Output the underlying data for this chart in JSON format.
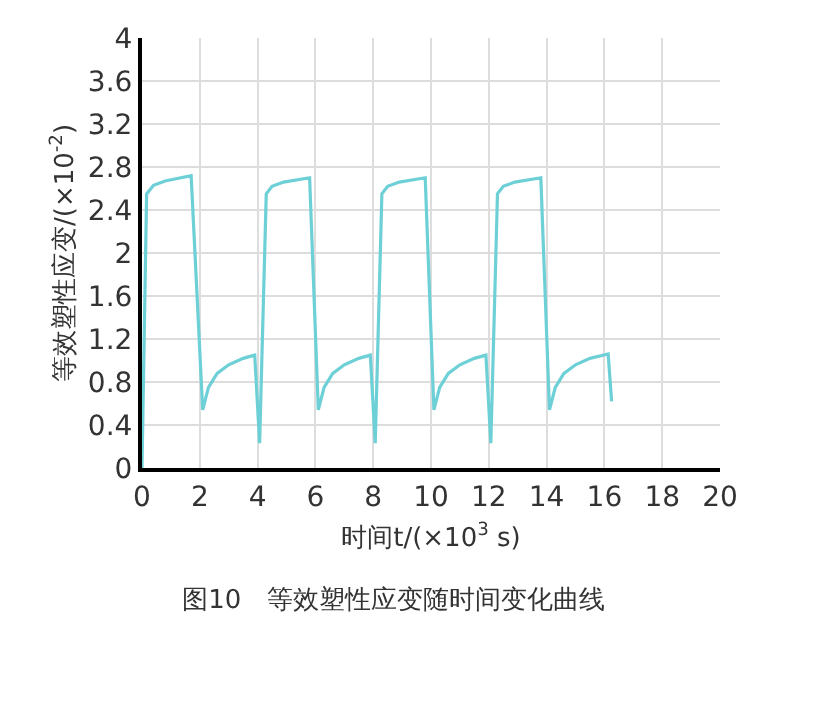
{
  "chart_data": {
    "type": "line",
    "title": "图10　等效塑性应变随时间变化曲线",
    "xlabel": "时间t/(×10$^{3}$ s)",
    "ylabel": "等效塑性应变/(×10$^{-2}$)",
    "x": [
      0,
      0.16,
      0.4,
      0.8,
      1.7,
      2.1,
      2.3,
      2.6,
      3.0,
      3.5,
      3.9,
      4.07,
      4.3,
      4.5,
      4.9,
      5.8,
      6.1,
      6.3,
      6.6,
      7.0,
      7.5,
      7.9,
      8.07,
      8.3,
      8.5,
      8.9,
      9.8,
      10.1,
      10.3,
      10.6,
      11.0,
      11.5,
      11.9,
      12.07,
      12.3,
      12.5,
      12.9,
      13.8,
      14.1,
      14.3,
      14.6,
      15.0,
      15.5,
      16.13,
      16.25
    ],
    "series": [
      {
        "color": "#6dd0d6",
        "values": [
          0,
          2.55,
          2.63,
          2.67,
          2.72,
          0.54,
          0.75,
          0.88,
          0.96,
          1.02,
          1.05,
          0.23,
          2.55,
          2.62,
          2.66,
          2.7,
          0.54,
          0.75,
          0.88,
          0.96,
          1.02,
          1.05,
          0.23,
          2.55,
          2.62,
          2.66,
          2.7,
          0.54,
          0.75,
          0.88,
          0.96,
          1.02,
          1.05,
          0.23,
          2.55,
          2.62,
          2.66,
          2.7,
          0.54,
          0.75,
          0.88,
          0.96,
          1.02,
          1.06,
          0.62
        ]
      }
    ],
    "xlim": [
      0,
      20
    ],
    "xticks": [
      0,
      2,
      4,
      6,
      8,
      10,
      12,
      14,
      16,
      18,
      20
    ],
    "ylim": [
      0,
      4
    ],
    "yticks": [
      0,
      0.4,
      0.8,
      1.2,
      1.6,
      2,
      2.4,
      2.8,
      3.2,
      3.6,
      4
    ],
    "grid": true,
    "marker": "none",
    "line_style": "solid"
  }
}
